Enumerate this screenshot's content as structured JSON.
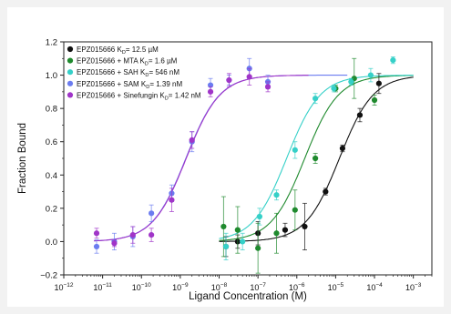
{
  "chart_data": {
    "type": "scatter",
    "xlabel": "Ligand Concentration (M)",
    "ylabel": "Fraction Bound",
    "x_scale": "log",
    "xlim": [
      1e-12,
      0.003
    ],
    "ylim": [
      -0.2,
      1.2
    ],
    "x_ticks": [
      {
        "exp": -12,
        "label": "10",
        "sup": "−12"
      },
      {
        "exp": -11,
        "label": "10",
        "sup": "−11"
      },
      {
        "exp": -10,
        "label": "10",
        "sup": "−10"
      },
      {
        "exp": -9,
        "label": "10",
        "sup": "−9"
      },
      {
        "exp": -8,
        "label": "10",
        "sup": "−8"
      },
      {
        "exp": -7,
        "label": "10",
        "sup": "−7"
      },
      {
        "exp": -6,
        "label": "10",
        "sup": "−6"
      },
      {
        "exp": -5,
        "label": "10",
        "sup": "−5"
      },
      {
        "exp": -4,
        "label": "10",
        "sup": "−4"
      },
      {
        "exp": -3,
        "label": "10",
        "sup": "−3"
      }
    ],
    "y_ticks": [
      "−0.2",
      "0.0",
      "0.2",
      "0.4",
      "0.6",
      "0.8",
      "1.0",
      "1.2"
    ],
    "legend_position": "top-left",
    "series": [
      {
        "legend": {
          "pre": "EPZ015666 K",
          "sub": "D",
          "post": "= 12.5 µM"
        },
        "color": "#111111",
        "kd": 1.25e-05,
        "curve_range": [
          1e-08,
          0.001
        ],
        "points": [
          {
            "x": 1.5e-08,
            "y": -0.03,
            "err": 0.06
          },
          {
            "x": 3e-08,
            "y": 0.0,
            "err": 0.04
          },
          {
            "x": 1e-07,
            "y": 0.05,
            "err": 0.07
          },
          {
            "x": 5e-07,
            "y": 0.07,
            "err": 0.04
          },
          {
            "x": 1.6e-06,
            "y": 0.09,
            "err": 0.14
          },
          {
            "x": 5.5e-06,
            "y": 0.3,
            "err": 0.02
          },
          {
            "x": 1.5e-05,
            "y": 0.56,
            "err": 0.02
          },
          {
            "x": 4.2e-05,
            "y": 0.76,
            "err": 0.04
          },
          {
            "x": 0.00013,
            "y": 0.95,
            "err": 0.06
          }
        ]
      },
      {
        "legend": {
          "pre": "EPZ015666 + MTA K",
          "sub": "D",
          "post": "= 1.6 µM"
        },
        "color": "#1f8a2e",
        "kd": 1.6e-06,
        "curve_range": [
          1e-08,
          0.001
        ],
        "points": [
          {
            "x": 1.3e-08,
            "y": 0.09,
            "err": 0.18
          },
          {
            "x": 3e-08,
            "y": 0.07,
            "err": 0.14
          },
          {
            "x": 1e-07,
            "y": -0.04,
            "err": 0.15
          },
          {
            "x": 3e-07,
            "y": 0.05,
            "err": 0.12
          },
          {
            "x": 9e-07,
            "y": 0.19,
            "err": 0.12
          },
          {
            "x": 3e-06,
            "y": 0.5,
            "err": 0.03
          },
          {
            "x": 1e-05,
            "y": 0.92,
            "err": 0.02
          },
          {
            "x": 3e-05,
            "y": 0.98,
            "err": 0.12
          },
          {
            "x": 0.0001,
            "y": 0.85,
            "err": 0.03
          }
        ]
      },
      {
        "legend": {
          "pre": "EPZ015666 + SAH K",
          "sub": "D",
          "post": "= 546 nM"
        },
        "color": "#35d0c8",
        "kd": 5.46e-07,
        "curve_range": [
          1e-08,
          0.001
        ],
        "points": [
          {
            "x": 1.5e-08,
            "y": -0.03,
            "err": 0.08
          },
          {
            "x": 4e-08,
            "y": 0.0,
            "err": 0.05
          },
          {
            "x": 1.1e-07,
            "y": 0.15,
            "err": 0.05
          },
          {
            "x": 3e-07,
            "y": 0.28,
            "err": 0.03
          },
          {
            "x": 9e-07,
            "y": 0.55,
            "err": 0.05
          },
          {
            "x": 3e-06,
            "y": 0.86,
            "err": 0.03
          },
          {
            "x": 9e-06,
            "y": 0.92,
            "err": 0.02
          },
          {
            "x": 2.5e-05,
            "y": 0.96,
            "err": 0.02
          },
          {
            "x": 8e-05,
            "y": 1.0,
            "err": 0.04
          },
          {
            "x": 0.0003,
            "y": 1.09,
            "err": 0.02
          }
        ]
      },
      {
        "legend": {
          "pre": "EPZ015666 + SAM K",
          "sub": "D",
          "post": "= 1.39 nM"
        },
        "color": "#6b7cf0",
        "kd": 1.39e-09,
        "curve_range": [
          6e-12,
          2e-05
        ],
        "points": [
          {
            "x": 7e-12,
            "y": -0.03,
            "err": 0.04
          },
          {
            "x": 2e-11,
            "y": 0.0,
            "err": 0.05
          },
          {
            "x": 6e-11,
            "y": 0.03,
            "err": 0.06
          },
          {
            "x": 1.8e-10,
            "y": 0.17,
            "err": 0.05
          },
          {
            "x": 6e-10,
            "y": 0.29,
            "err": 0.05
          },
          {
            "x": 2e-09,
            "y": 0.6,
            "err": 0.06
          },
          {
            "x": 6e-09,
            "y": 0.94,
            "err": 0.04
          },
          {
            "x": 1.8e-08,
            "y": 0.97,
            "err": 0.03
          },
          {
            "x": 6e-08,
            "y": 1.04,
            "err": 0.06
          },
          {
            "x": 1.8e-07,
            "y": 0.96,
            "err": 0.04
          }
        ]
      },
      {
        "legend": {
          "pre": "EPZ015666 + Sinefungin K",
          "sub": "D",
          "post": "= 1.42 nM"
        },
        "color": "#a035c8",
        "kd": 1.42e-09,
        "curve_range": [
          6e-12,
          2e-06
        ],
        "points": [
          {
            "x": 7e-12,
            "y": 0.05,
            "err": 0.03
          },
          {
            "x": 2e-11,
            "y": -0.01,
            "err": 0.02
          },
          {
            "x": 6e-11,
            "y": 0.04,
            "err": 0.05
          },
          {
            "x": 1.8e-10,
            "y": 0.04,
            "err": 0.04
          },
          {
            "x": 6e-10,
            "y": 0.25,
            "err": 0.07
          },
          {
            "x": 2e-09,
            "y": 0.61,
            "err": 0.05
          },
          {
            "x": 6e-09,
            "y": 0.9,
            "err": 0.03
          },
          {
            "x": 1.8e-08,
            "y": 0.97,
            "err": 0.04
          },
          {
            "x": 6e-08,
            "y": 0.99,
            "err": 0.05
          },
          {
            "x": 1.8e-07,
            "y": 0.93,
            "err": 0.03
          }
        ]
      }
    ]
  }
}
